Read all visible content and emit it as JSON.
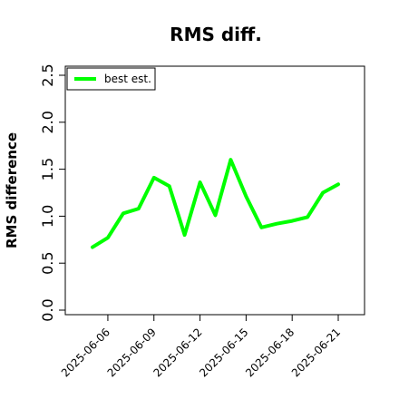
{
  "chart_data": {
    "type": "line",
    "title": "RMS diff.",
    "xlabel": "",
    "ylabel": "RMS difference",
    "ylim": [
      0,
      2.5
    ],
    "yticks": [
      "0.0",
      "0.5",
      "1.0",
      "1.5",
      "2.0",
      "2.5"
    ],
    "xticks": [
      "2025-06-06",
      "2025-06-09",
      "2025-06-12",
      "2025-06-15",
      "2025-06-18",
      "2025-06-21"
    ],
    "x": [
      "2025-06-05",
      "2025-06-06",
      "2025-06-07",
      "2025-06-08",
      "2025-06-09",
      "2025-06-10",
      "2025-06-11",
      "2025-06-12",
      "2025-06-13",
      "2025-06-14",
      "2025-06-15",
      "2025-06-16",
      "2025-06-17",
      "2025-06-18",
      "2025-06-19",
      "2025-06-20",
      "2025-06-21"
    ],
    "grid": false,
    "legend_position": "top-left",
    "series": [
      {
        "name": "best est.",
        "color": "#00ff00",
        "values": [
          0.67,
          0.77,
          1.03,
          1.08,
          1.41,
          1.32,
          0.8,
          1.36,
          1.01,
          1.6,
          1.21,
          0.88,
          0.92,
          0.95,
          0.99,
          1.25,
          1.34
        ]
      }
    ]
  }
}
